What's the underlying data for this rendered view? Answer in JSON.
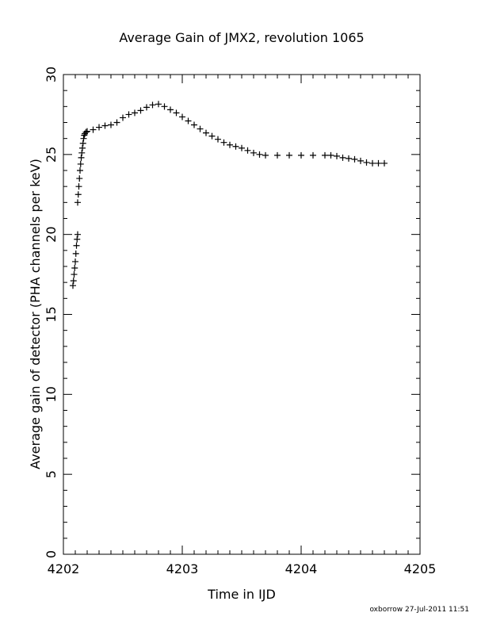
{
  "chart_data": {
    "type": "scatter",
    "marker": "plus",
    "title": "Average Gain of JMX2, revolution 1065",
    "xlabel": "Time in IJD",
    "ylabel": "Average gain of detector (PHA channels per keV)",
    "xlim": [
      4202,
      4205
    ],
    "ylim": [
      0,
      30
    ],
    "xticks": [
      "4202",
      "4203",
      "4204",
      "4205"
    ],
    "yticks": [
      "0",
      "5",
      "10",
      "15",
      "20",
      "25",
      "30"
    ],
    "grid": false,
    "legend": "none",
    "series": [
      {
        "points": [
          [
            4202.08,
            16.8
          ],
          [
            4202.085,
            17.1
          ],
          [
            4202.09,
            17.5
          ],
          [
            4202.095,
            17.9
          ],
          [
            4202.1,
            18.3
          ],
          [
            4202.105,
            18.8
          ],
          [
            4202.11,
            19.3
          ],
          [
            4202.115,
            19.7
          ],
          [
            4202.12,
            20.0
          ],
          [
            4202.12,
            22.0
          ],
          [
            4202.125,
            22.5
          ],
          [
            4202.13,
            23.0
          ],
          [
            4202.135,
            23.5
          ],
          [
            4202.14,
            24.0
          ],
          [
            4202.145,
            24.4
          ],
          [
            4202.15,
            24.8
          ],
          [
            4202.155,
            25.1
          ],
          [
            4202.16,
            25.4
          ],
          [
            4202.165,
            25.7
          ],
          [
            4202.17,
            26.0
          ],
          [
            4202.175,
            26.2
          ],
          [
            4202.18,
            26.3
          ],
          [
            4202.19,
            26.4
          ],
          [
            4202.2,
            26.45
          ],
          [
            4202.25,
            26.55
          ],
          [
            4202.3,
            26.7
          ],
          [
            4202.35,
            26.8
          ],
          [
            4202.4,
            26.85
          ],
          [
            4202.45,
            27.0
          ],
          [
            4202.5,
            27.3
          ],
          [
            4202.55,
            27.5
          ],
          [
            4202.6,
            27.6
          ],
          [
            4202.65,
            27.75
          ],
          [
            4202.7,
            27.95
          ],
          [
            4202.75,
            28.1
          ],
          [
            4202.8,
            28.15
          ],
          [
            4202.85,
            28.0
          ],
          [
            4202.9,
            27.8
          ],
          [
            4202.95,
            27.6
          ],
          [
            4203.0,
            27.35
          ],
          [
            4203.05,
            27.1
          ],
          [
            4203.1,
            26.85
          ],
          [
            4203.15,
            26.6
          ],
          [
            4203.2,
            26.35
          ],
          [
            4203.25,
            26.15
          ],
          [
            4203.3,
            25.95
          ],
          [
            4203.35,
            25.75
          ],
          [
            4203.4,
            25.6
          ],
          [
            4203.45,
            25.5
          ],
          [
            4203.5,
            25.4
          ],
          [
            4203.55,
            25.25
          ],
          [
            4203.6,
            25.1
          ],
          [
            4203.65,
            25.0
          ],
          [
            4203.7,
            24.95
          ],
          [
            4203.8,
            24.95
          ],
          [
            4203.9,
            24.95
          ],
          [
            4204.0,
            24.95
          ],
          [
            4204.1,
            24.95
          ],
          [
            4204.2,
            24.95
          ],
          [
            4204.25,
            24.95
          ],
          [
            4204.3,
            24.9
          ],
          [
            4204.35,
            24.8
          ],
          [
            4204.4,
            24.75
          ],
          [
            4204.45,
            24.7
          ],
          [
            4204.5,
            24.6
          ],
          [
            4204.55,
            24.5
          ],
          [
            4204.6,
            24.45
          ],
          [
            4204.65,
            24.45
          ],
          [
            4204.7,
            24.45
          ]
        ]
      }
    ]
  },
  "footer": "oxborrow 27-Jul-2011 11:51"
}
